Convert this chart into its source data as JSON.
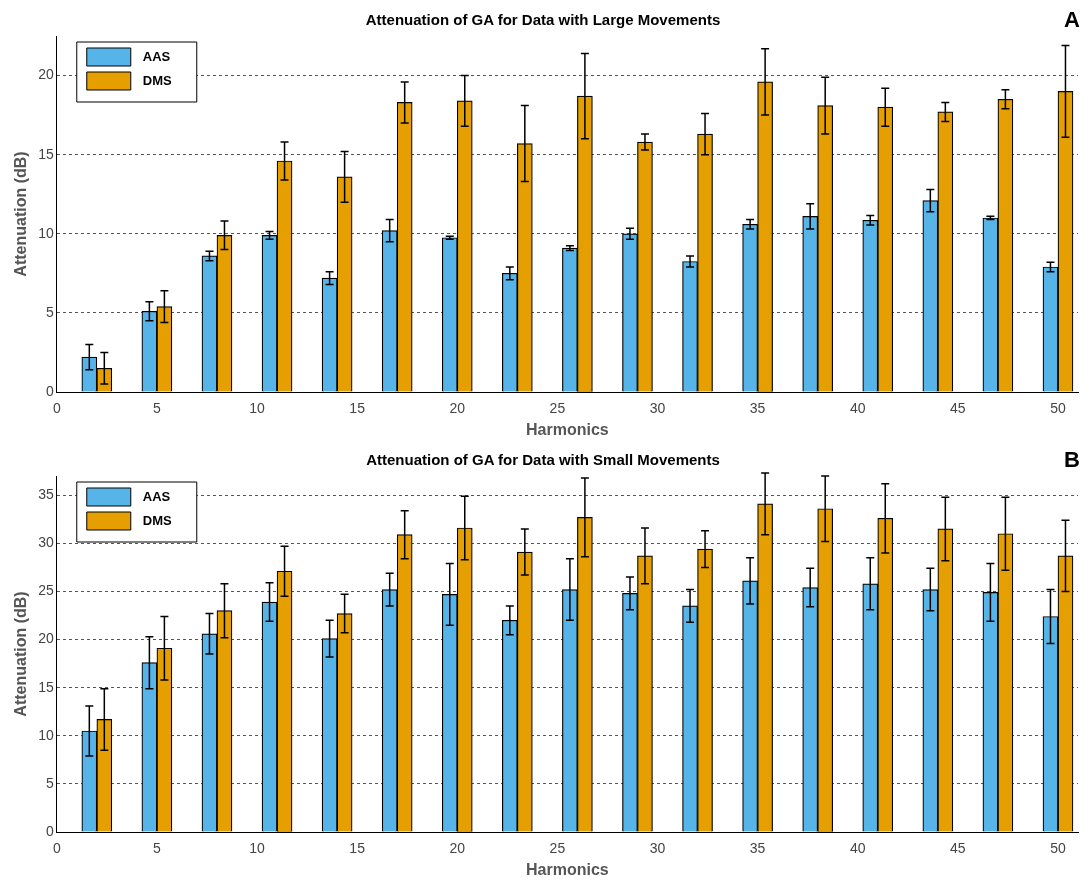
{
  "chart_data": [
    {
      "type": "bar",
      "title": "Attenuation of GA for Data with Large Movements",
      "xlabel": "Harmonics",
      "ylabel": "Attenuation (dB)",
      "annotations": [
        "A"
      ],
      "x": [
        2,
        5,
        8,
        11,
        14,
        17,
        20,
        23,
        26,
        29,
        32,
        35,
        38,
        41,
        44,
        47,
        50
      ],
      "series": [
        {
          "name": "AAS",
          "color": "#56b4e9",
          "values": [
            2.2,
            5.1,
            8.6,
            9.9,
            7.2,
            10.2,
            9.75,
            7.5,
            9.1,
            10.0,
            8.25,
            10.6,
            11.1,
            10.85,
            12.1,
            11.0,
            7.9
          ],
          "errors": [
            0.8,
            0.6,
            0.3,
            0.25,
            0.4,
            0.7,
            0.1,
            0.4,
            0.15,
            0.35,
            0.35,
            0.3,
            0.8,
            0.3,
            0.7,
            0.1,
            0.3
          ]
        },
        {
          "name": "DMS",
          "color": "#e69f00",
          "values": [
            1.5,
            5.4,
            9.9,
            14.6,
            13.6,
            18.3,
            18.4,
            15.7,
            18.7,
            15.8,
            16.3,
            19.6,
            18.1,
            18.0,
            17.7,
            18.5,
            19.0
          ],
          "errors": [
            1.0,
            1.0,
            0.9,
            1.2,
            1.6,
            1.3,
            1.6,
            2.4,
            2.7,
            0.5,
            1.3,
            2.1,
            1.8,
            1.2,
            0.6,
            0.6,
            2.9
          ]
        }
      ],
      "xlim": [
        0,
        51
      ],
      "xticks": [
        0,
        5,
        10,
        15,
        20,
        25,
        30,
        35,
        40,
        45,
        50
      ],
      "ylim": [
        0,
        22.5
      ],
      "yticks": [
        0,
        5,
        10,
        15,
        20
      ],
      "grid": "y",
      "legend": "top left"
    },
    {
      "type": "bar",
      "title": "Attenuation of GA for Data with Small Movements",
      "xlabel": "Harmonics",
      "ylabel": "Attenuation (dB)",
      "annotations": [
        "B"
      ],
      "x": [
        2,
        5,
        8,
        11,
        14,
        17,
        20,
        23,
        26,
        29,
        32,
        35,
        38,
        41,
        44,
        47,
        50
      ],
      "series": [
        {
          "name": "AAS",
          "color": "#56b4e9",
          "values": [
            10.5,
            17.6,
            20.6,
            23.9,
            20.1,
            25.2,
            24.7,
            22.0,
            25.2,
            24.8,
            23.5,
            26.1,
            25.4,
            25.8,
            25.2,
            24.9,
            22.4
          ],
          "errors": [
            2.6,
            2.7,
            2.1,
            2.0,
            1.9,
            1.7,
            3.2,
            1.5,
            3.2,
            1.7,
            1.7,
            2.4,
            2.0,
            2.7,
            2.2,
            3.0,
            2.8
          ]
        },
        {
          "name": "DMS",
          "color": "#e69f00",
          "values": [
            11.7,
            19.1,
            23.0,
            27.1,
            22.7,
            30.9,
            31.6,
            29.1,
            32.7,
            28.7,
            29.4,
            34.1,
            33.6,
            32.6,
            31.5,
            31.0,
            28.7
          ],
          "errors": [
            3.2,
            3.3,
            2.8,
            2.6,
            2.0,
            2.5,
            3.3,
            2.4,
            4.1,
            2.9,
            1.9,
            3.2,
            3.4,
            3.6,
            3.3,
            3.8,
            3.7
          ]
        }
      ],
      "xlim": [
        0,
        51
      ],
      "xticks": [
        0,
        5,
        10,
        15,
        20,
        25,
        30,
        35,
        40,
        45,
        50
      ],
      "ylim": [
        0,
        37
      ],
      "yticks": [
        0,
        5,
        10,
        15,
        20,
        25,
        30,
        35
      ],
      "grid": "y",
      "legend": "top left"
    }
  ]
}
